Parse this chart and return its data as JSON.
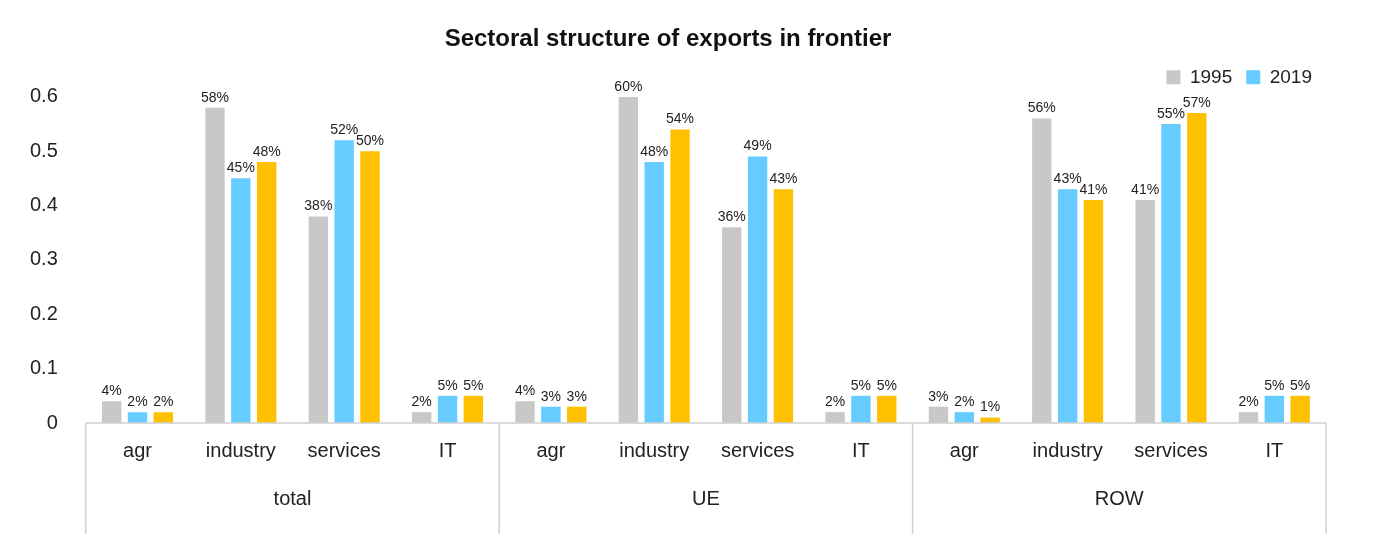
{
  "chart_data": {
    "type": "bar",
    "title": "Sectoral structure of exports in frontier",
    "categories": [
      "agr",
      "industry",
      "services",
      "IT",
      "agr",
      "industry",
      "services",
      "IT",
      "agr",
      "industry",
      "services",
      "IT"
    ],
    "series": [
      {
        "name": "1995",
        "color": "#c8c8c8",
        "values": [
          0.04,
          0.58,
          0.38,
          0.02,
          0.04,
          0.6,
          0.36,
          0.02,
          0.03,
          0.56,
          0.41,
          0.02
        ],
        "value_labels": [
          "4%",
          "58%",
          "38%",
          "2%",
          "4%",
          "60%",
          "36%",
          "2%",
          "3%",
          "56%",
          "41%",
          "2%"
        ]
      },
      {
        "name": "2019",
        "color": "#66ccff",
        "values": [
          0.02,
          0.45,
          0.52,
          0.05,
          0.03,
          0.48,
          0.49,
          0.05,
          0.02,
          0.43,
          0.55,
          0.05
        ],
        "value_labels": [
          "2%",
          "45%",
          "52%",
          "5%",
          "3%",
          "48%",
          "49%",
          "5%",
          "2%",
          "43%",
          "55%",
          "5%"
        ]
      },
      {
        "color": "#ffc000",
        "values": [
          0.02,
          0.48,
          0.5,
          0.05,
          0.03,
          0.54,
          0.43,
          0.05,
          0.01,
          0.41,
          0.57,
          0.05
        ],
        "value_labels": [
          "2%",
          "48%",
          "50%",
          "5%",
          "3%",
          "54%",
          "43%",
          "5%",
          "1%",
          "41%",
          "57%",
          "5%"
        ]
      }
    ],
    "annotations": [
      "total",
      "UE",
      "ROW"
    ],
    "ylim": [
      0,
      0.6
    ],
    "yticks": [
      0,
      0.1,
      0.2,
      0.3,
      0.4,
      0.5,
      0.6
    ],
    "grid": false,
    "legend": "top right"
  }
}
